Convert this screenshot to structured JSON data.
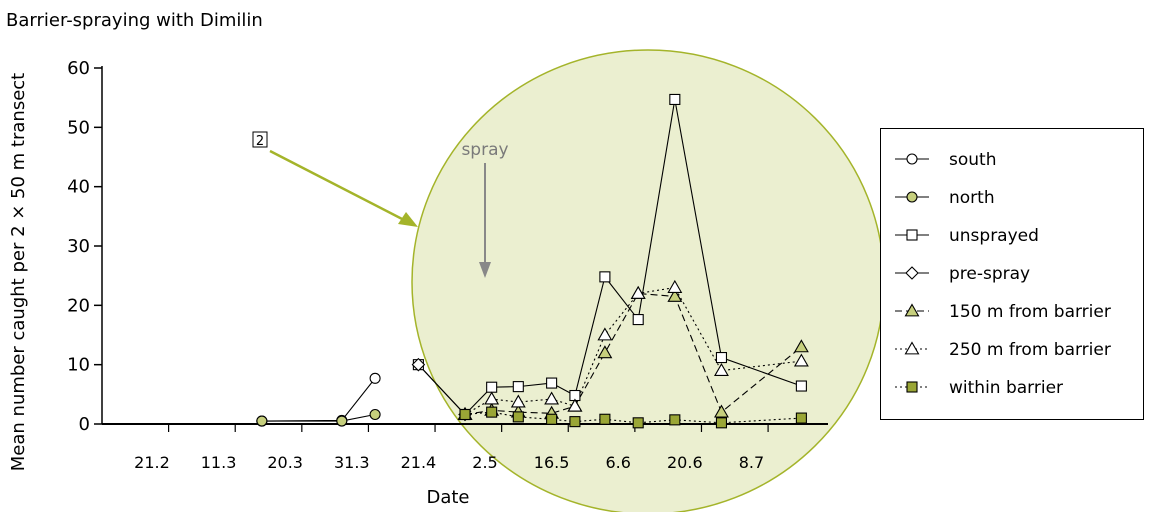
{
  "chart_data": {
    "type": "line",
    "title": "Barrier-spraying with Dimilin",
    "xlabel": "Date",
    "ylabel": "Mean number caught per 2 × 50 m transect",
    "ylim": [
      0,
      60
    ],
    "yticks": [
      "0",
      "10",
      "20",
      "30",
      "40",
      "50",
      "60"
    ],
    "xtick_labels": [
      "21.2",
      "11.3",
      "20.3",
      "31.3",
      "21.4",
      "2.5",
      "16.5",
      "6.6",
      "20.6",
      "8.7"
    ],
    "xtick_values": [
      0.75,
      1.75,
      2.75,
      3.75,
      4.75,
      5.75,
      6.75,
      7.75,
      8.75,
      9.75
    ],
    "xlim": [
      0,
      11.5
    ],
    "grid": false,
    "legend_position": "right",
    "annotations": {
      "spray_label": "spray",
      "spray_x": 5.75,
      "box_label": "2"
    },
    "series": [
      {
        "name": "south",
        "marker": "circle",
        "fill": "#ffffff",
        "dash": "solid",
        "x": [
          2.4,
          3.6,
          4.1
        ],
        "y": [
          0.5,
          0.6,
          7.7
        ]
      },
      {
        "name": "north",
        "marker": "circle",
        "fill": "#c6cf7d",
        "dash": "solid",
        "x": [
          2.4,
          3.6,
          4.1
        ],
        "y": [
          0.5,
          0.5,
          1.6
        ]
      },
      {
        "name": "unsprayed",
        "marker": "square",
        "fill": "#ffffff",
        "dash": "solid",
        "x": [
          4.75,
          5.45,
          5.85,
          6.25,
          6.75,
          7.1,
          7.55,
          8.05,
          8.6,
          9.3,
          10.5
        ],
        "y": [
          10.0,
          1.6,
          6.2,
          6.3,
          6.9,
          4.8,
          24.8,
          17.6,
          54.7,
          11.2,
          6.4
        ]
      },
      {
        "name": "pre-spray",
        "marker": "diamond",
        "fill": "#ffffff",
        "dash": "solid",
        "x": [
          4.75,
          5.45
        ],
        "y": [
          10.0,
          1.6
        ]
      },
      {
        "name": "150 m from barrier",
        "marker": "triangle",
        "fill": "#c6cf7d",
        "dash": "dashed",
        "x": [
          5.45,
          5.85,
          6.25,
          6.75,
          7.1,
          7.55,
          8.05,
          8.6,
          9.3,
          10.5
        ],
        "y": [
          1.6,
          2.3,
          2.0,
          1.8,
          3.0,
          12.0,
          22.0,
          21.5,
          2.0,
          13.0
        ]
      },
      {
        "name": "250 m from barrier",
        "marker": "triangle",
        "fill": "#ffffff",
        "dash": "dotted",
        "x": [
          5.45,
          5.85,
          6.25,
          6.75,
          7.1,
          7.55,
          8.05,
          8.6,
          9.3,
          10.5
        ],
        "y": [
          1.6,
          4.2,
          3.7,
          4.2,
          3.0,
          15.0,
          22.0,
          23.0,
          9.0,
          10.6
        ]
      },
      {
        "name": "within barrier",
        "marker": "square",
        "fill": "#9aa636",
        "dash": "dotted",
        "x": [
          5.45,
          5.85,
          6.25,
          6.75,
          7.1,
          7.55,
          8.05,
          8.6,
          9.3,
          10.5
        ],
        "y": [
          1.6,
          2.0,
          1.2,
          0.8,
          0.4,
          0.8,
          0.2,
          0.7,
          0.2,
          1.0
        ]
      }
    ]
  }
}
